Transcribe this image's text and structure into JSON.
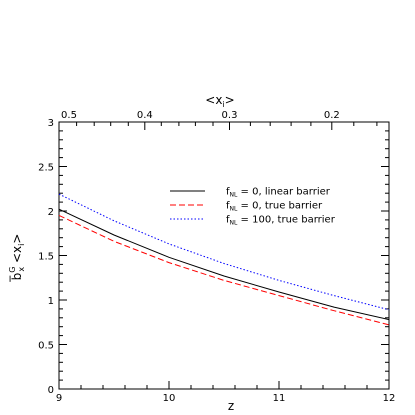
{
  "chart_data": {
    "type": "line",
    "xlabel": "z",
    "ylabel_main": "b̅",
    "ylabel_sup": "G",
    "ylabel_sub": "x",
    "ylabel_rest": " <x",
    "ylabel_sub2": "i",
    "ylabel_end": ">",
    "top_axis_label_main": "<x",
    "top_axis_label_sub": "i",
    "top_axis_label_end": ">",
    "xlim": [
      9,
      12
    ],
    "ylim": [
      0,
      3
    ],
    "x_ticks": [
      "9",
      "10",
      "11",
      "12"
    ],
    "y_ticks": [
      "0",
      "0.5",
      "1",
      "1.5",
      "2",
      "2.5",
      "3"
    ],
    "top_ticks": [
      {
        "z": 9.0,
        "label": "0.5"
      },
      {
        "z": 9.78,
        "label": "0.4"
      },
      {
        "z": 10.55,
        "label": "0.3"
      },
      {
        "z": 11.48,
        "label": "0.2"
      }
    ],
    "x": [
      9.0,
      9.5,
      10.0,
      10.5,
      11.0,
      11.5,
      12.0
    ],
    "series": [
      {
        "name_f": "f",
        "name_sub": "NL",
        "name_rest": " = 0, linear barrier",
        "color": "#000000",
        "dash": "",
        "values": [
          2.02,
          1.73,
          1.48,
          1.27,
          1.09,
          0.92,
          0.78
        ]
      },
      {
        "name_f": "f",
        "name_sub": "NL",
        "name_rest": " = 0, true barrier",
        "color": "#ff0000",
        "dash": "6,3",
        "values": [
          1.95,
          1.66,
          1.42,
          1.22,
          1.05,
          0.88,
          0.72
        ]
      },
      {
        "name_f": "f",
        "name_sub": "NL",
        "name_rest": " = 100, true barrier",
        "color": "#0000ff",
        "dash": "1.5,2",
        "values": [
          2.19,
          1.89,
          1.63,
          1.41,
          1.22,
          1.05,
          0.89
        ]
      }
    ],
    "legend_position": "center-right",
    "grid": false
  }
}
